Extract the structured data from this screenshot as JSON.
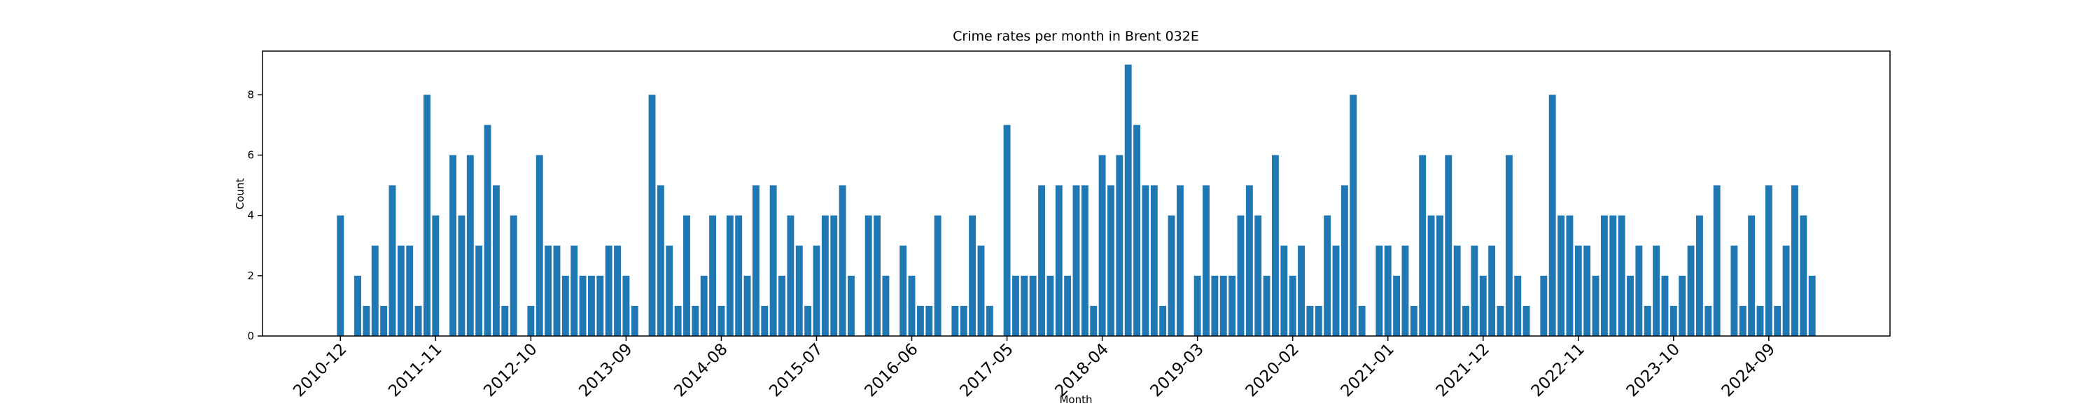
{
  "chart_data": {
    "type": "bar",
    "title": "Crime rates per month in Brent 032E",
    "xlabel": "Month",
    "ylabel": "Count",
    "color": "#1f77b4",
    "categories": [
      "2010-12",
      null,
      null,
      null,
      null,
      null,
      null,
      null,
      null,
      null,
      null,
      "2011-11",
      null,
      null,
      null,
      null,
      null,
      null,
      null,
      null,
      null,
      null,
      "2012-10",
      null,
      null,
      null,
      null,
      null,
      null,
      null,
      null,
      null,
      null,
      "2013-09",
      null,
      null,
      null,
      null,
      null,
      null,
      null,
      null,
      null,
      null,
      "2014-08",
      null,
      null,
      null,
      null,
      null,
      null,
      null,
      null,
      null,
      null,
      "2015-07",
      null,
      null,
      null,
      null,
      null,
      null,
      null,
      null,
      null,
      null,
      "2016-06",
      null,
      null,
      null,
      null,
      null,
      null,
      null,
      null,
      null,
      null,
      "2017-05",
      null,
      null,
      null,
      null,
      null,
      null,
      null,
      null,
      null,
      null,
      "2018-04",
      null,
      null,
      null,
      null,
      null,
      null,
      null,
      null,
      null,
      null,
      "2019-03",
      null,
      null,
      null,
      null,
      null,
      null,
      null,
      null,
      null,
      null,
      "2020-02",
      null,
      null,
      null,
      null,
      null,
      null,
      null,
      null,
      null,
      null,
      "2021-01",
      null,
      null,
      null,
      null,
      null,
      null,
      null,
      null,
      null,
      null,
      "2021-12",
      null,
      null,
      null,
      null,
      null,
      null,
      null,
      null,
      null,
      null,
      "2022-11",
      null,
      null,
      null,
      null,
      null,
      null,
      null,
      null,
      null,
      null,
      "2023-10",
      null,
      null,
      null,
      null,
      null,
      null,
      null,
      null,
      null,
      null,
      "2024-09",
      null,
      null,
      null,
      null,
      null
    ],
    "values": [
      4,
      0,
      2,
      1,
      3,
      1,
      5,
      3,
      3,
      1,
      8,
      4,
      0,
      6,
      4,
      6,
      3,
      7,
      5,
      1,
      4,
      0,
      1,
      6,
      3,
      3,
      2,
      3,
      2,
      2,
      2,
      3,
      3,
      2,
      1,
      0,
      8,
      5,
      3,
      1,
      4,
      1,
      2,
      4,
      1,
      4,
      4,
      2,
      5,
      1,
      5,
      2,
      4,
      3,
      1,
      3,
      4,
      4,
      5,
      2,
      0,
      4,
      4,
      2,
      0,
      3,
      2,
      1,
      1,
      4,
      0,
      1,
      1,
      4,
      3,
      1,
      0,
      7,
      2,
      2,
      2,
      5,
      2,
      5,
      2,
      5,
      5,
      1,
      6,
      5,
      6,
      9,
      7,
      5,
      5,
      1,
      4,
      5,
      0,
      2,
      5,
      2,
      2,
      2,
      4,
      5,
      4,
      2,
      6,
      3,
      2,
      3,
      1,
      1,
      4,
      3,
      5,
      8,
      1,
      0,
      3,
      3,
      2,
      3,
      1,
      6,
      4,
      4,
      6,
      3,
      1,
      3,
      2,
      3,
      1,
      6,
      2,
      1,
      0,
      2,
      8,
      4,
      4,
      3,
      3,
      2,
      4,
      4,
      4,
      2,
      3,
      1,
      3,
      2,
      1,
      2,
      3,
      4,
      1,
      5,
      0,
      3,
      1,
      4,
      1,
      5,
      1,
      3,
      5,
      4,
      2
    ],
    "ylim": [
      0,
      9.45
    ],
    "yticks": [
      0,
      2,
      4,
      6,
      8
    ]
  }
}
